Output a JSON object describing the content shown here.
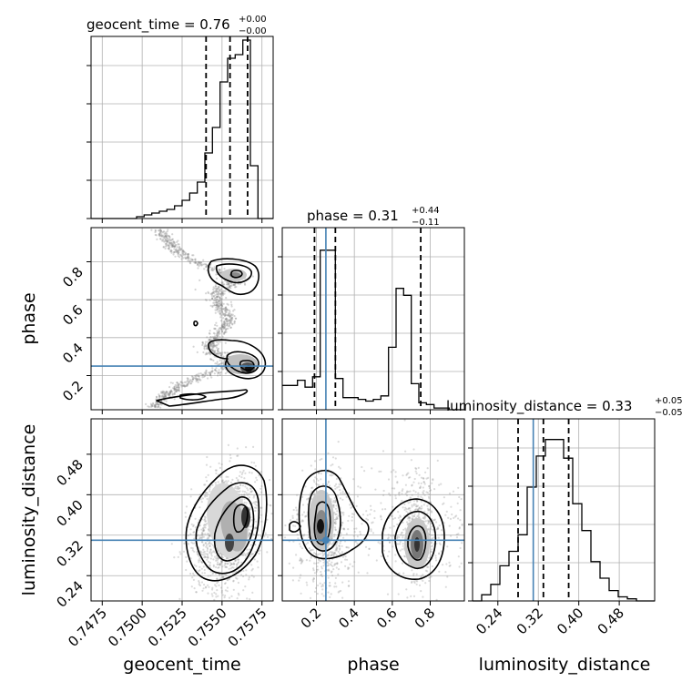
{
  "chart_data": {
    "type": "corner",
    "parameters": [
      "geocent_time",
      "phase",
      "luminosity_distance"
    ],
    "titles": [
      {
        "param": "geocent_time",
        "median": "0.76",
        "plus": "+0.00",
        "minus": "−0.00"
      },
      {
        "param": "phase",
        "median": "0.31",
        "plus": "+0.44",
        "minus": "−0.11"
      },
      {
        "param": "luminosity_distance",
        "median": "0.33",
        "plus": "+0.05",
        "minus": "−0.05"
      }
    ],
    "axis_labels": {
      "x": [
        "geocent_time",
        "phase",
        "luminosity_distance"
      ],
      "y": [
        "phase",
        "luminosity_distance"
      ]
    },
    "ticks": {
      "geocent_time": [
        "0.7475",
        "0.7500",
        "0.7525",
        "0.7550",
        "0.7575"
      ],
      "phase": [
        "0.2",
        "0.4",
        "0.6",
        "0.8"
      ],
      "luminosity_distance": [
        "0.24",
        "0.32",
        "0.40",
        "0.48"
      ]
    },
    "ranges": {
      "geocent_time": [
        0.7468,
        0.7582
      ],
      "phase": [
        0.02,
        0.98
      ],
      "luminosity_distance": [
        0.19,
        0.55
      ]
    },
    "truths": {
      "geocent_time": null,
      "phase": 0.25,
      "luminosity_distance": 0.31
    },
    "quantiles": {
      "geocent_time": [
        0.754,
        0.7555,
        0.7566
      ],
      "phase": [
        0.19,
        0.3,
        0.75
      ],
      "luminosity_distance": [
        0.28,
        0.33,
        0.38
      ]
    },
    "histograms": {
      "geocent_time": {
        "edges_start": 0.7468,
        "edges_end": 0.7582,
        "counts": [
          0,
          0,
          0,
          0,
          0,
          0,
          1,
          2,
          3,
          4,
          5,
          7,
          10,
          14,
          20,
          36,
          50,
          75,
          88,
          90,
          98,
          29,
          0,
          0
        ]
      },
      "phase": {
        "edges_start": 0.02,
        "edges_end": 0.98,
        "counts": [
          14,
          14,
          17,
          13,
          19,
          92,
          92,
          18,
          7,
          7,
          6,
          5,
          6,
          8,
          36,
          70,
          66,
          15,
          4,
          3,
          1,
          1,
          0,
          0
        ]
      },
      "luminosity_distance": {
        "edges_start": 0.19,
        "edges_end": 0.55,
        "counts": [
          0,
          3,
          8,
          17,
          24,
          32,
          55,
          70,
          78,
          78,
          69,
          47,
          34,
          19,
          11,
          5,
          2,
          1,
          0,
          0
        ]
      }
    },
    "grid": true,
    "colors": {
      "truth": "#4682b4",
      "contour": "#000000",
      "points": "#999999"
    }
  }
}
